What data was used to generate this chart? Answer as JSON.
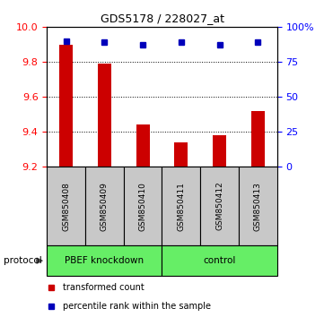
{
  "title": "GDS5178 / 228027_at",
  "samples": [
    "GSM850408",
    "GSM850409",
    "GSM850410",
    "GSM850411",
    "GSM850412",
    "GSM850413"
  ],
  "red_values": [
    9.9,
    9.79,
    9.44,
    9.34,
    9.38,
    9.52
  ],
  "blue_values": [
    90,
    89,
    87,
    89,
    87,
    89
  ],
  "ylim_left": [
    9.2,
    10.0
  ],
  "ylim_right": [
    0,
    100
  ],
  "yticks_left": [
    9.2,
    9.4,
    9.6,
    9.8,
    10.0
  ],
  "yticks_right": [
    0,
    25,
    50,
    75,
    100
  ],
  "bar_color": "#CC0000",
  "dot_color": "#0000BB",
  "bar_bottom": 9.2,
  "bg_plot": "#FFFFFF",
  "sample_bg": "#C8C8C8",
  "group_bg": "#66EE66",
  "legend_red_label": "transformed count",
  "legend_blue_label": "percentile rank within the sample",
  "protocol_label": "protocol",
  "knockdown_label": "PBEF knockdown",
  "control_label": "control"
}
